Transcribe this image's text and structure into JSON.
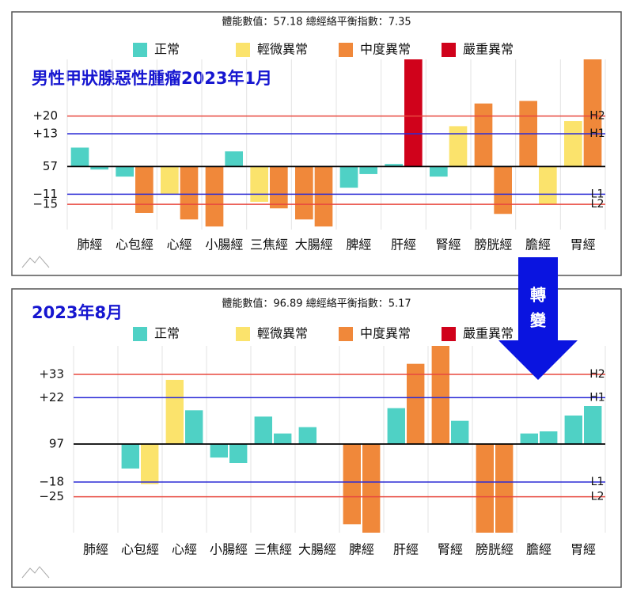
{
  "chart_data": [
    {
      "type": "bar",
      "title": "男性甲狀腺惡性腫瘤2023年1月",
      "subtitle": "體能數值：57.18 總經絡平衡指數：7.35",
      "legend": [
        {
          "name": "正常",
          "color": "#4fd1c5"
        },
        {
          "name": "輕微異常",
          "color": "#fbe36c"
        },
        {
          "name": "中度異常",
          "color": "#f0883a"
        },
        {
          "name": "嚴重異常",
          "color": "#d0021b"
        }
      ],
      "categories": [
        "肺經",
        "心包經",
        "心經",
        "小腸經",
        "三焦經",
        "大腸經",
        "脾經",
        "肝經",
        "腎經",
        "膀胱經",
        "膽經",
        "胃經"
      ],
      "values": [
        [
          7.5,
          -1.2
        ],
        [
          -4,
          -18.4
        ],
        [
          -11,
          -21
        ],
        [
          -23.8,
          6
        ],
        [
          -14,
          -16.6
        ],
        [
          -21,
          -23.8
        ],
        [
          -8.4,
          -3
        ],
        [
          1,
          42.5
        ],
        [
          -4,
          16
        ],
        [
          25,
          -18.8
        ],
        [
          26,
          -15
        ],
        [
          18,
          42.5
        ]
      ],
      "status": [
        [
          0,
          0
        ],
        [
          0,
          2
        ],
        [
          1,
          2
        ],
        [
          2,
          0
        ],
        [
          1,
          2
        ],
        [
          2,
          2
        ],
        [
          0,
          0
        ],
        [
          0,
          3
        ],
        [
          0,
          1
        ],
        [
          2,
          2
        ],
        [
          2,
          1
        ],
        [
          1,
          2
        ]
      ],
      "ylim": [
        -25,
        42.5
      ],
      "yticks": [
        {
          "value": 20,
          "label": "+20",
          "line_label": "H2",
          "color": "#e8483f"
        },
        {
          "value": 13,
          "label": "+13",
          "line_label": "H1",
          "color": "#2b2bd6"
        },
        {
          "value": 0,
          "label": "57",
          "color": "#000000"
        },
        {
          "value": -11,
          "label": "−11",
          "line_label": "L1",
          "color": "#2b2bd6"
        },
        {
          "value": -15,
          "label": "−15",
          "line_label": "L2",
          "color": "#e8483f"
        }
      ]
    },
    {
      "type": "bar",
      "title": "2023年8月",
      "subtitle": "體能數值：96.89 總經絡平衡指數：5.17",
      "legend": [
        {
          "name": "正常",
          "color": "#4fd1c5"
        },
        {
          "name": "輕微異常",
          "color": "#fbe36c"
        },
        {
          "name": "中度異常",
          "color": "#f0883a"
        },
        {
          "name": "嚴重異常",
          "color": "#d0021b"
        }
      ],
      "categories": [
        "肺經",
        "心包經",
        "心經",
        "小腸經",
        "三焦經",
        "大腸經",
        "脾經",
        "肝經",
        "腎經",
        "膀胱經",
        "膽經",
        "胃經"
      ],
      "values": [
        [
          0,
          0
        ],
        [
          -11.6,
          -19
        ],
        [
          30.4,
          16
        ],
        [
          -6.4,
          -9
        ],
        [
          13,
          5
        ],
        [
          8,
          0
        ],
        [
          -38,
          -42
        ],
        [
          17,
          38
        ],
        [
          46.5,
          11
        ],
        [
          -42,
          -42
        ],
        [
          5,
          6
        ],
        [
          13.5,
          18
        ]
      ],
      "status": [
        [
          0,
          0
        ],
        [
          0,
          1
        ],
        [
          1,
          0
        ],
        [
          0,
          0
        ],
        [
          0,
          0
        ],
        [
          0,
          0
        ],
        [
          2,
          2
        ],
        [
          0,
          2
        ],
        [
          2,
          0
        ],
        [
          2,
          2
        ],
        [
          0,
          0
        ],
        [
          0,
          0
        ]
      ],
      "ylim": [
        -42,
        46.5
      ],
      "yticks": [
        {
          "value": 33,
          "label": "+33",
          "line_label": "H2",
          "color": "#e8483f"
        },
        {
          "value": 22,
          "label": "+22",
          "line_label": "H1",
          "color": "#2b2bd6"
        },
        {
          "value": 0,
          "label": "97",
          "color": "#000000"
        },
        {
          "value": -18,
          "label": "−18",
          "line_label": "L1",
          "color": "#2b2bd6"
        },
        {
          "value": -25,
          "label": "−25",
          "line_label": "L2",
          "color": "#e8483f"
        }
      ]
    }
  ],
  "transition": [
    "轉",
    "變"
  ]
}
